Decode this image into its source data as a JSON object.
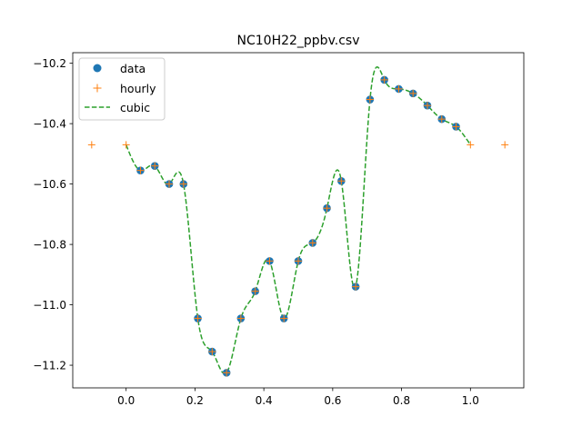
{
  "chart_data": {
    "type": "line",
    "title": "NC10H22_ppbv.csv",
    "xlabel": "",
    "ylabel": "",
    "xlim": [
      -0.155,
      1.155
    ],
    "ylim": [
      -11.275,
      -10.165
    ],
    "x_ticks": [
      0.0,
      0.2,
      0.4,
      0.6,
      0.8,
      1.0
    ],
    "x_tick_labels": [
      "0.0",
      "0.2",
      "0.4",
      "0.6",
      "0.8",
      "1.0"
    ],
    "y_ticks": [
      -11.2,
      -11.0,
      -10.8,
      -10.6,
      -10.4,
      -10.2
    ],
    "y_tick_labels": [
      "−11.2",
      "−11.0",
      "−10.8",
      "−10.6",
      "−10.4",
      "−10.2"
    ],
    "legend": {
      "placement": "top-left",
      "entries": [
        "data",
        "hourly",
        "cubic"
      ]
    },
    "colors": {
      "data": "#1f77b4",
      "hourly": "#ff7f0e",
      "cubic": "#2ca02c"
    },
    "series": [
      {
        "name": "data",
        "style": "markers-circle",
        "x": [
          0.0417,
          0.0833,
          0.125,
          0.1667,
          0.2083,
          0.25,
          0.2917,
          0.3333,
          0.375,
          0.4167,
          0.4583,
          0.5,
          0.5417,
          0.5833,
          0.625,
          0.6667,
          0.7083,
          0.75,
          0.7917,
          0.8333,
          0.875,
          0.9167,
          0.9583
        ],
        "y": [
          -10.555,
          -10.54,
          -10.6,
          -10.6,
          -11.045,
          -11.155,
          -11.225,
          -11.045,
          -10.955,
          -10.855,
          -11.045,
          -10.855,
          -10.795,
          -10.68,
          -10.59,
          -10.94,
          -10.32,
          -10.255,
          -10.285,
          -10.3,
          -10.34,
          -10.385,
          -10.41
        ]
      },
      {
        "name": "hourly",
        "style": "markers-plus",
        "x": [
          -0.1,
          0.0,
          0.0417,
          0.0833,
          0.125,
          0.1667,
          0.2083,
          0.25,
          0.2917,
          0.3333,
          0.375,
          0.4167,
          0.4583,
          0.5,
          0.5417,
          0.5833,
          0.625,
          0.6667,
          0.7083,
          0.75,
          0.7917,
          0.8333,
          0.875,
          0.9167,
          0.9583,
          1.0,
          1.1
        ],
        "y": [
          -10.47,
          -10.47,
          -10.555,
          -10.54,
          -10.6,
          -10.6,
          -11.045,
          -11.155,
          -11.225,
          -11.045,
          -10.955,
          -10.855,
          -11.045,
          -10.855,
          -10.795,
          -10.68,
          -10.59,
          -10.94,
          -10.32,
          -10.255,
          -10.285,
          -10.3,
          -10.34,
          -10.385,
          -10.41,
          -10.47,
          -10.47
        ]
      },
      {
        "name": "cubic",
        "style": "dashed-line",
        "x": [
          0.0,
          0.0417,
          0.0833,
          0.125,
          0.1667,
          0.2083,
          0.25,
          0.2917,
          0.3333,
          0.375,
          0.4167,
          0.4583,
          0.5,
          0.5417,
          0.5833,
          0.625,
          0.6667,
          0.7083,
          0.75,
          0.7917,
          0.8333,
          0.875,
          0.9167,
          0.9583,
          1.0
        ],
        "y": [
          -10.47,
          -10.555,
          -10.54,
          -10.6,
          -10.6,
          -11.045,
          -11.155,
          -11.225,
          -11.045,
          -10.955,
          -10.855,
          -11.045,
          -10.855,
          -10.795,
          -10.68,
          -10.59,
          -10.94,
          -10.32,
          -10.255,
          -10.285,
          -10.3,
          -10.34,
          -10.385,
          -10.41,
          -10.47
        ]
      }
    ]
  }
}
